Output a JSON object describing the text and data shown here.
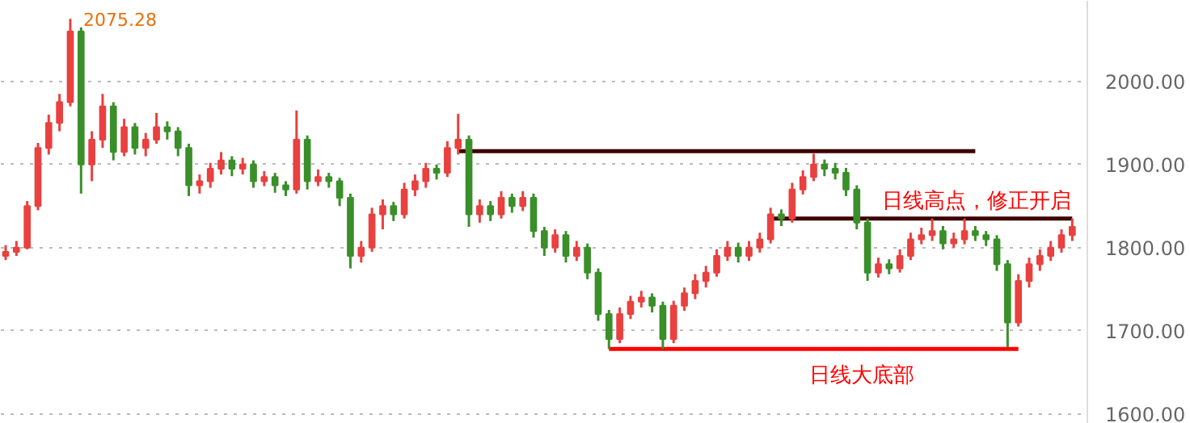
{
  "chart_data": {
    "type": "candlestick",
    "categories": [
      null,
      null,
      null,
      null,
      null,
      null,
      null,
      null,
      null,
      null,
      null,
      null,
      null,
      null,
      null,
      null,
      null,
      null,
      null,
      null,
      null,
      null,
      null,
      null,
      null,
      null,
      null,
      null,
      null,
      null,
      null,
      null,
      null,
      null,
      null,
      null,
      null,
      null,
      null,
      null,
      null,
      null,
      null,
      null,
      null,
      null,
      null,
      null,
      null,
      null,
      null,
      null,
      null,
      null,
      null,
      null,
      null,
      null,
      null,
      null,
      null,
      null,
      null,
      null,
      null,
      null,
      null,
      null,
      null,
      null,
      null,
      null,
      null,
      null,
      null,
      null,
      null,
      null,
      null,
      null,
      null,
      null,
      null,
      null,
      null,
      null,
      null,
      null,
      null,
      null,
      null,
      null,
      null,
      null,
      null,
      null,
      null,
      null,
      null,
      null
    ],
    "ohlc": [
      [
        1790,
        1803,
        1785,
        1795
      ],
      [
        1795,
        1808,
        1790,
        1800
      ],
      [
        1800,
        1856,
        1798,
        1850
      ],
      [
        1850,
        1926,
        1845,
        1920
      ],
      [
        1920,
        1960,
        1912,
        1950
      ],
      [
        1950,
        1985,
        1940,
        1975
      ],
      [
        1975,
        2075.28,
        1970,
        2060
      ],
      [
        2060,
        2065,
        1865,
        1900
      ],
      [
        1900,
        1940,
        1880,
        1930
      ],
      [
        1930,
        1985,
        1920,
        1970
      ],
      [
        1970,
        1975,
        1905,
        1915
      ],
      [
        1915,
        1955,
        1910,
        1945
      ],
      [
        1945,
        1950,
        1912,
        1920
      ],
      [
        1920,
        1938,
        1910,
        1930
      ],
      [
        1930,
        1962,
        1925,
        1945
      ],
      [
        1945,
        1952,
        1930,
        1940
      ],
      [
        1940,
        1945,
        1910,
        1920
      ],
      [
        1920,
        1925,
        1862,
        1875
      ],
      [
        1875,
        1888,
        1865,
        1880
      ],
      [
        1880,
        1902,
        1872,
        1895
      ],
      [
        1895,
        1915,
        1888,
        1905
      ],
      [
        1905,
        1910,
        1886,
        1895
      ],
      [
        1895,
        1908,
        1888,
        1900
      ],
      [
        1900,
        1905,
        1872,
        1880
      ],
      [
        1880,
        1892,
        1874,
        1885
      ],
      [
        1885,
        1890,
        1866,
        1875
      ],
      [
        1875,
        1880,
        1862,
        1870
      ],
      [
        1870,
        1965,
        1865,
        1930
      ],
      [
        1930,
        1935,
        1870,
        1880
      ],
      [
        1880,
        1894,
        1874,
        1885
      ],
      [
        1885,
        1890,
        1872,
        1880
      ],
      [
        1880,
        1884,
        1850,
        1860
      ],
      [
        1860,
        1865,
        1775,
        1790
      ],
      [
        1790,
        1808,
        1782,
        1800
      ],
      [
        1800,
        1848,
        1795,
        1840
      ],
      [
        1840,
        1858,
        1822,
        1850
      ],
      [
        1850,
        1855,
        1832,
        1840
      ],
      [
        1840,
        1878,
        1835,
        1870
      ],
      [
        1870,
        1888,
        1862,
        1880
      ],
      [
        1880,
        1902,
        1872,
        1895
      ],
      [
        1895,
        1900,
        1882,
        1890
      ],
      [
        1890,
        1928,
        1885,
        1920
      ],
      [
        1920,
        1961,
        1912,
        1930
      ],
      [
        1930,
        1935,
        1825,
        1840
      ],
      [
        1840,
        1858,
        1830,
        1850
      ],
      [
        1850,
        1856,
        1832,
        1840
      ],
      [
        1840,
        1868,
        1835,
        1860
      ],
      [
        1860,
        1865,
        1842,
        1850
      ],
      [
        1850,
        1868,
        1844,
        1860
      ],
      [
        1860,
        1865,
        1812,
        1820
      ],
      [
        1820,
        1825,
        1790,
        1800
      ],
      [
        1800,
        1822,
        1794,
        1815
      ],
      [
        1815,
        1820,
        1782,
        1790
      ],
      [
        1790,
        1808,
        1784,
        1800
      ],
      [
        1800,
        1805,
        1762,
        1770
      ],
      [
        1770,
        1775,
        1712,
        1720
      ],
      [
        1720,
        1725,
        1678,
        1690
      ],
      [
        1690,
        1728,
        1685,
        1720
      ],
      [
        1720,
        1742,
        1714,
        1735
      ],
      [
        1735,
        1748,
        1728,
        1740
      ],
      [
        1740,
        1745,
        1722,
        1730
      ],
      [
        1730,
        1735,
        1678,
        1690
      ],
      [
        1690,
        1736,
        1685,
        1730
      ],
      [
        1730,
        1752,
        1724,
        1745
      ],
      [
        1745,
        1768,
        1738,
        1760
      ],
      [
        1760,
        1778,
        1752,
        1770
      ],
      [
        1770,
        1798,
        1765,
        1790
      ],
      [
        1790,
        1808,
        1784,
        1800
      ],
      [
        1800,
        1806,
        1782,
        1790
      ],
      [
        1790,
        1808,
        1784,
        1800
      ],
      [
        1800,
        1818,
        1794,
        1810
      ],
      [
        1810,
        1848,
        1805,
        1840
      ],
      [
        1840,
        1846,
        1826,
        1835
      ],
      [
        1835,
        1878,
        1830,
        1870
      ],
      [
        1870,
        1893,
        1864,
        1885
      ],
      [
        1885,
        1913,
        1880,
        1900
      ],
      [
        1900,
        1906,
        1886,
        1895
      ],
      [
        1895,
        1902,
        1882,
        1890
      ],
      [
        1890,
        1896,
        1862,
        1870
      ],
      [
        1870,
        1875,
        1822,
        1830
      ],
      [
        1830,
        1835,
        1760,
        1770
      ],
      [
        1770,
        1788,
        1764,
        1780
      ],
      [
        1780,
        1786,
        1768,
        1775
      ],
      [
        1775,
        1798,
        1770,
        1790
      ],
      [
        1790,
        1818,
        1785,
        1810
      ],
      [
        1810,
        1824,
        1804,
        1815
      ],
      [
        1815,
        1835,
        1808,
        1820
      ],
      [
        1820,
        1826,
        1798,
        1805
      ],
      [
        1805,
        1818,
        1800,
        1810
      ],
      [
        1810,
        1835,
        1804,
        1820
      ],
      [
        1820,
        1826,
        1808,
        1815
      ],
      [
        1815,
        1820,
        1802,
        1810
      ],
      [
        1810,
        1815,
        1772,
        1780
      ],
      [
        1780,
        1785,
        1680,
        1710
      ],
      [
        1710,
        1768,
        1705,
        1760
      ],
      [
        1760,
        1788,
        1752,
        1780
      ],
      [
        1780,
        1798,
        1772,
        1790
      ],
      [
        1790,
        1808,
        1784,
        1800
      ],
      [
        1800,
        1822,
        1794,
        1815
      ],
      [
        1815,
        1835,
        1808,
        1825
      ]
    ],
    "colors": [
      "#e8413f",
      "#e8413f",
      "#e8413f",
      "#e8413f",
      "#e8413f",
      "#e8413f",
      "#e8413f",
      "#3a8f2a",
      "#e8413f",
      "#e8413f",
      "#3a8f2a",
      "#e8413f",
      "#3a8f2a",
      "#e8413f",
      "#e8413f",
      "#3a8f2a",
      "#3a8f2a",
      "#3a8f2a",
      "#e8413f",
      "#e8413f",
      "#e8413f",
      "#3a8f2a",
      "#e8413f",
      "#3a8f2a",
      "#e8413f",
      "#3a8f2a",
      "#3a8f2a",
      "#e8413f",
      "#3a8f2a",
      "#e8413f",
      "#3a8f2a",
      "#3a8f2a",
      "#3a8f2a",
      "#e8413f",
      "#e8413f",
      "#e8413f",
      "#3a8f2a",
      "#e8413f",
      "#e8413f",
      "#e8413f",
      "#3a8f2a",
      "#e8413f",
      "#e8413f",
      "#3a8f2a",
      "#e8413f",
      "#3a8f2a",
      "#e8413f",
      "#3a8f2a",
      "#e8413f",
      "#3a8f2a",
      "#3a8f2a",
      "#e8413f",
      "#3a8f2a",
      "#e8413f",
      "#3a8f2a",
      "#3a8f2a",
      "#3a8f2a",
      "#e8413f",
      "#e8413f",
      "#e8413f",
      "#3a8f2a",
      "#3a8f2a",
      "#e8413f",
      "#e8413f",
      "#e8413f",
      "#e8413f",
      "#e8413f",
      "#e8413f",
      "#3a8f2a",
      "#e8413f",
      "#e8413f",
      "#e8413f",
      "#3a8f2a",
      "#e8413f",
      "#e8413f",
      "#e8413f",
      "#3a8f2a",
      "#3a8f2a",
      "#3a8f2a",
      "#3a8f2a",
      "#3a8f2a",
      "#e8413f",
      "#3a8f2a",
      "#e8413f",
      "#e8413f",
      "#e8413f",
      "#e8413f",
      "#3a8f2a",
      "#e8413f",
      "#e8413f",
      "#3a8f2a",
      "#3a8f2a",
      "#3a8f2a",
      "#3a8f2a",
      "#e8413f",
      "#e8413f",
      "#e8413f",
      "#e8413f",
      "#e8413f",
      "#e8413f"
    ],
    "series": [
      {
        "type": "line",
        "color": "#3d0000",
        "values": [
          null,
          null,
          null,
          null,
          null,
          null,
          null,
          null,
          null,
          null,
          null,
          null,
          null,
          null,
          null,
          null,
          null,
          null,
          null,
          null,
          null,
          null,
          null,
          null,
          null,
          null,
          null,
          null,
          null,
          null,
          null,
          null,
          null,
          null,
          null,
          null,
          null,
          null,
          null,
          null,
          null,
          null,
          1916,
          1916,
          1916,
          1916,
          1916,
          1916,
          1916,
          1916,
          1916,
          1916,
          1916,
          1916,
          1916,
          1916,
          1916,
          1916,
          1916,
          1916,
          1916,
          1916,
          1916,
          1916,
          1916,
          1916,
          1916,
          1916,
          1916,
          1916,
          1916,
          1916,
          1916,
          1916,
          1916,
          1916,
          1916,
          1916,
          1916,
          1916,
          1916,
          1916,
          1916,
          1916,
          1916,
          1916,
          1916,
          1916,
          1916,
          1916,
          1916,
          null,
          null,
          null,
          null,
          null,
          null,
          null,
          null,
          null
        ]
      },
      {
        "type": "line",
        "color": "#3d0000",
        "values": [
          null,
          null,
          null,
          null,
          null,
          null,
          null,
          null,
          null,
          null,
          null,
          null,
          null,
          null,
          null,
          null,
          null,
          null,
          null,
          null,
          null,
          null,
          null,
          null,
          null,
          null,
          null,
          null,
          null,
          null,
          null,
          null,
          null,
          null,
          null,
          null,
          null,
          null,
          null,
          null,
          null,
          null,
          null,
          null,
          null,
          null,
          null,
          null,
          null,
          null,
          null,
          null,
          null,
          null,
          null,
          null,
          null,
          null,
          null,
          null,
          null,
          null,
          null,
          null,
          null,
          null,
          null,
          null,
          null,
          null,
          null,
          1835,
          1835,
          1835,
          1835,
          1835,
          1835,
          1835,
          1835,
          1835,
          1835,
          1835,
          1835,
          1835,
          1835,
          1835,
          1835,
          1835,
          1835,
          1835,
          1835,
          1835,
          1835,
          1835,
          1835,
          1835,
          1835,
          1835,
          1835,
          1835
        ]
      },
      {
        "type": "line",
        "color": "#ff0000",
        "values": [
          null,
          null,
          null,
          null,
          null,
          null,
          null,
          null,
          null,
          null,
          null,
          null,
          null,
          null,
          null,
          null,
          null,
          null,
          null,
          null,
          null,
          null,
          null,
          null,
          null,
          null,
          null,
          null,
          null,
          null,
          null,
          null,
          null,
          null,
          null,
          null,
          null,
          null,
          null,
          null,
          null,
          null,
          null,
          null,
          null,
          null,
          null,
          null,
          null,
          null,
          null,
          null,
          null,
          null,
          null,
          null,
          1678,
          1678,
          1678,
          1678,
          1678,
          1678,
          1678,
          1678,
          1678,
          1678,
          1678,
          1678,
          1678,
          1678,
          1678,
          1678,
          1678,
          1678,
          1678,
          1678,
          1678,
          1678,
          1678,
          1678,
          1678,
          1678,
          1678,
          1678,
          1678,
          1678,
          1678,
          1678,
          1678,
          1678,
          1678,
          1678,
          1678,
          1678,
          1678,
          null,
          null,
          null,
          null,
          null
        ]
      }
    ],
    "annotations": [
      "2075.28",
      "日线高点，修正开启",
      "日线大底部"
    ],
    "ylim": [
      1588,
      2097
    ],
    "yticks": [
      {
        "value": 1600,
        "label": "1600.00"
      },
      {
        "value": 1700,
        "label": "1700.00"
      },
      {
        "value": 1800,
        "label": "1800.00"
      },
      {
        "value": 1900,
        "label": "1900.00"
      },
      {
        "value": 2000,
        "label": "2000.00"
      }
    ],
    "grid": "y",
    "tick_labels": "y"
  }
}
